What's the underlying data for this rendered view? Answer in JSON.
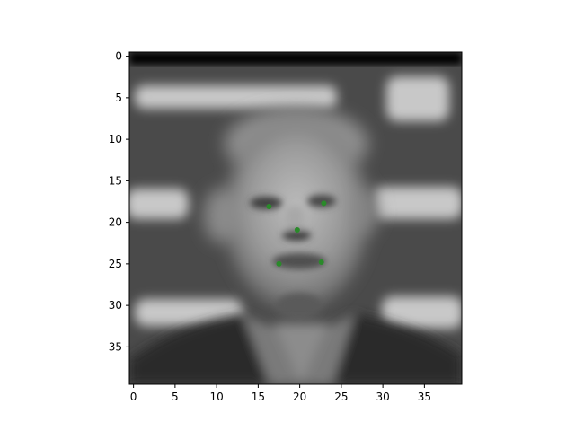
{
  "chart_data": {
    "type": "scatter",
    "title": "",
    "xlabel": "",
    "ylabel": "",
    "image_description_fallback": "Blurred grayscale face photo displayed as image plot background",
    "xlim": [
      -0.5,
      39.5
    ],
    "ylim": [
      39.5,
      -0.5
    ],
    "y_inverted": true,
    "xticks": [
      0,
      5,
      10,
      15,
      20,
      25,
      30,
      35
    ],
    "yticks": [
      0,
      5,
      10,
      15,
      20,
      25,
      30,
      35
    ],
    "grid": false,
    "legend": "none",
    "series": [
      {
        "color": "#2a8a2a",
        "points": [
          {
            "x": 16.3,
            "y": 18.1
          },
          {
            "x": 22.9,
            "y": 17.7
          },
          {
            "x": 19.7,
            "y": 20.9
          },
          {
            "x": 17.5,
            "y": 25.0
          },
          {
            "x": 22.6,
            "y": 24.8
          }
        ]
      }
    ]
  }
}
